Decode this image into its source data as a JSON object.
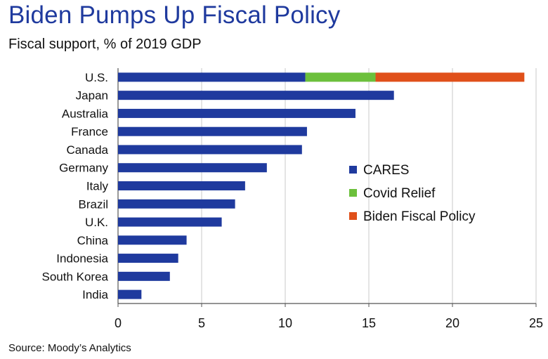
{
  "title": "Biden Pumps Up Fiscal Policy",
  "subtitle": "Fiscal support, % of 2019 GDP",
  "source": "Source: Moody’s Analytics",
  "chart_data": {
    "type": "bar",
    "orientation": "horizontal",
    "stacked": true,
    "categories": [
      "U.S.",
      "Japan",
      "Australia",
      "France",
      "Canada",
      "Germany",
      "Italy",
      "Brazil",
      "U.K.",
      "China",
      "Indonesia",
      "South Korea",
      "India"
    ],
    "series": [
      {
        "name": "CARES",
        "color": "#1f3a9e",
        "values": [
          11.2,
          16.5,
          14.2,
          11.3,
          11.0,
          8.9,
          7.6,
          7.0,
          6.2,
          4.1,
          3.6,
          3.1,
          1.4
        ]
      },
      {
        "name": "Covid Relief",
        "color": "#6cc03c",
        "values": [
          4.2,
          0,
          0,
          0,
          0,
          0,
          0,
          0,
          0,
          0,
          0,
          0,
          0
        ]
      },
      {
        "name": "Biden Fiscal Policy",
        "color": "#e0501a",
        "values": [
          8.9,
          0,
          0,
          0,
          0,
          0,
          0,
          0,
          0,
          0,
          0,
          0,
          0
        ]
      }
    ],
    "xlim": [
      0,
      25
    ],
    "xticks": [
      0,
      5,
      10,
      15,
      20,
      25
    ],
    "grid": "vertical",
    "legend_position": "right"
  }
}
